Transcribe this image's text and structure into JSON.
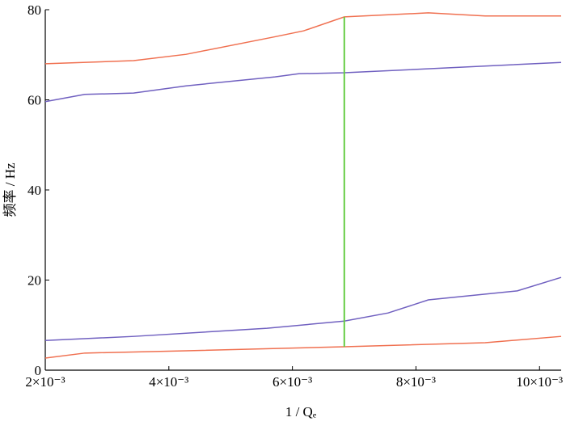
{
  "chart_data": {
    "type": "line",
    "xlabel": "1 / Qₑ",
    "ylabel": "频率 / Hz",
    "xlim": [
      0.002,
      0.01035
    ],
    "ylim": [
      0,
      80
    ],
    "xticks": [
      {
        "value": 0.002,
        "label": "2×10⁻³"
      },
      {
        "value": 0.004,
        "label": "4×10⁻³"
      },
      {
        "value": 0.006,
        "label": "6×10⁻³"
      },
      {
        "value": 0.008,
        "label": "8×10⁻³"
      },
      {
        "value": 0.01,
        "label": "10×10⁻³"
      }
    ],
    "yticks": [
      0,
      20,
      40,
      60,
      80
    ],
    "grid": false,
    "series": [
      {
        "color": "#f07050",
        "x": [
          0.002,
          0.00343,
          0.00428,
          0.00572,
          0.00618,
          0.00684,
          0.0082,
          0.00912,
          0.01035
        ],
        "values": [
          68.0,
          68.7,
          70.1,
          74.0,
          75.3,
          78.4,
          79.3,
          78.6,
          78.6
        ]
      },
      {
        "color": "#7060c0",
        "x": [
          0.002,
          0.00264,
          0.00343,
          0.00428,
          0.00572,
          0.00611,
          0.00684,
          0.01035
        ],
        "values": [
          59.6,
          61.2,
          61.5,
          63.1,
          65.1,
          65.8,
          66.0,
          68.3
        ]
      },
      {
        "color": "#7060c0",
        "x": [
          0.002,
          0.00343,
          0.00559,
          0.00684,
          0.00755,
          0.0082,
          0.00964,
          0.01035
        ],
        "values": [
          6.6,
          7.5,
          9.3,
          10.9,
          12.7,
          15.6,
          17.6,
          20.6
        ]
      },
      {
        "color": "#f07050",
        "x": [
          0.002,
          0.00264,
          0.00428,
          0.00684,
          0.00912,
          0.01035
        ],
        "values": [
          2.7,
          3.8,
          4.3,
          5.2,
          6.1,
          7.5
        ]
      }
    ],
    "marker": {
      "x": 0.00684,
      "y": [
        5.2,
        78.4
      ],
      "color": "#66cc44"
    }
  }
}
